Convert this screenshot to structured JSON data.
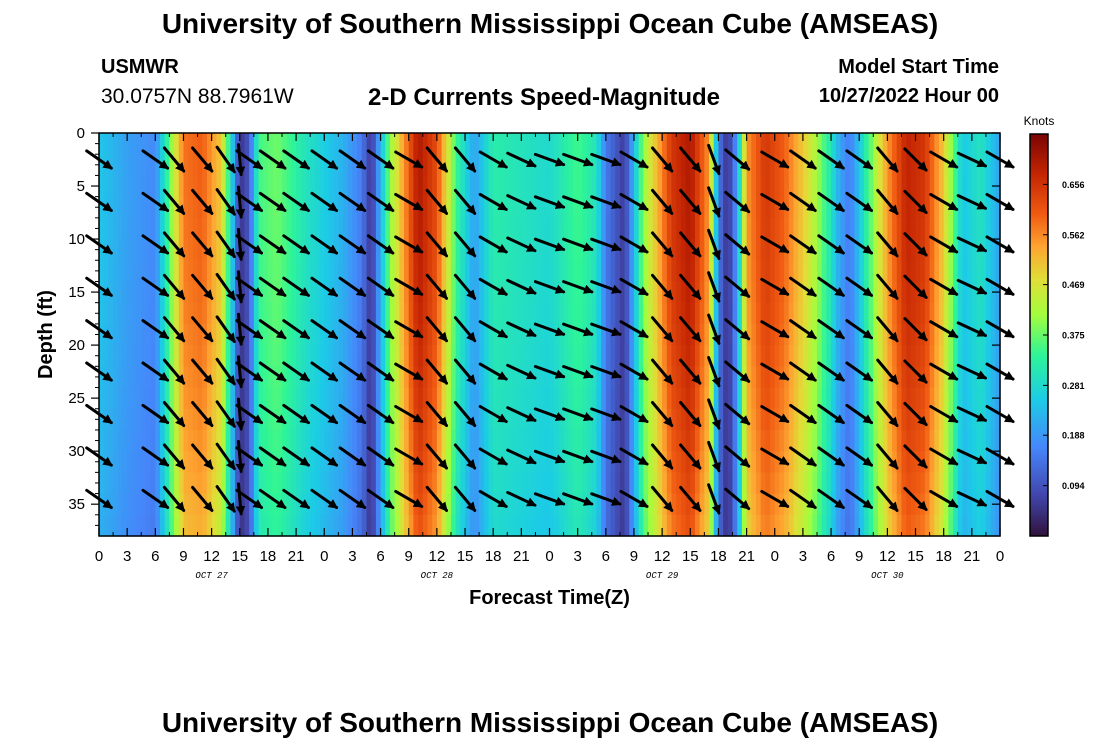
{
  "header": {
    "title": "University of Southern Mississippi Ocean Cube (AMSEAS)",
    "station": "USMWR",
    "coords": "30.0757N  88.7961W",
    "subtitle": "2-D Currents Speed-Magnitude",
    "model_start_label": "Model Start Time",
    "model_start_value": "10/27/2022 Hour 00"
  },
  "footer": {
    "title": "University of Southern Mississippi Ocean Cube (AMSEAS)"
  },
  "chart_data": {
    "type": "heatmap",
    "title": "2-D Currents Speed-Magnitude",
    "xlabel": "Forecast Time(Z)",
    "ylabel": "Depth (ft)",
    "x_range_hours": [
      0,
      96
    ],
    "ylim": [
      0,
      38
    ],
    "y_inverted": true,
    "x_ticks": [
      "0",
      "3",
      "6",
      "9",
      "12",
      "15",
      "18",
      "21",
      "0",
      "3",
      "6",
      "9",
      "12",
      "15",
      "18",
      "21",
      "0",
      "3",
      "6",
      "9",
      "12",
      "15",
      "18",
      "21",
      "0",
      "3",
      "6",
      "9",
      "12",
      "15",
      "18",
      "21",
      "0"
    ],
    "y_ticks": [
      "0",
      "5",
      "10",
      "15",
      "20",
      "25",
      "30",
      "35"
    ],
    "date_labels": [
      {
        "label": "OCT 27",
        "hour": 12
      },
      {
        "label": "OCT 28",
        "hour": 36
      },
      {
        "label": "OCT 29",
        "hour": 60
      },
      {
        "label": "OCT 30",
        "hour": 84
      }
    ],
    "colorbar": {
      "title": "Knots",
      "min": 0.0,
      "max": 0.75,
      "ticks": [
        "0.656",
        "0.562",
        "0.469",
        "0.375",
        "0.281",
        "0.188",
        "0.094"
      ],
      "tick_values": [
        0.656,
        0.562,
        0.469,
        0.375,
        0.281,
        0.188,
        0.094
      ]
    },
    "speed_series_hours": [
      0,
      3,
      6,
      7,
      9,
      11,
      13,
      14,
      15,
      16,
      17,
      19,
      22,
      26,
      28,
      29,
      31,
      34,
      36,
      38,
      40,
      42,
      45,
      48,
      51,
      53,
      54,
      56,
      58,
      61,
      63,
      65,
      66,
      67,
      68,
      69,
      71,
      73,
      76,
      78,
      79,
      80,
      82,
      84,
      86,
      88,
      90,
      92,
      94,
      96
    ],
    "speed_series_knots": [
      0.25,
      0.2,
      0.17,
      0.3,
      0.58,
      0.6,
      0.5,
      0.3,
      0.05,
      0.1,
      0.35,
      0.38,
      0.3,
      0.22,
      0.15,
      0.05,
      0.4,
      0.7,
      0.62,
      0.35,
      0.2,
      0.32,
      0.3,
      0.28,
      0.35,
      0.3,
      0.15,
      0.06,
      0.4,
      0.65,
      0.7,
      0.55,
      0.15,
      0.04,
      0.2,
      0.55,
      0.65,
      0.6,
      0.45,
      0.3,
      0.2,
      0.15,
      0.35,
      0.55,
      0.68,
      0.65,
      0.5,
      0.25,
      0.3,
      0.2
    ],
    "depth_attenuation": 0.12,
    "vector_columns_hours": [
      0,
      6,
      8,
      11,
      13.5,
      15,
      16,
      18.5,
      21,
      24,
      27,
      30,
      33,
      36,
      39,
      42,
      45,
      48,
      51,
      54,
      57,
      60,
      63,
      65.5,
      68,
      72,
      75,
      78,
      81,
      84,
      87,
      90,
      93,
      96
    ],
    "vector_rows_ft": [
      2.5,
      6.5,
      10.5,
      14.5,
      18.5,
      22.5,
      26.5,
      30.5,
      34.5
    ],
    "vector_direction_deg": [
      145,
      145,
      130,
      130,
      125,
      95,
      145,
      145,
      145,
      145,
      145,
      145,
      150,
      130,
      130,
      150,
      155,
      160,
      160,
      160,
      150,
      130,
      130,
      110,
      140,
      150,
      145,
      145,
      145,
      130,
      135,
      150,
      155,
      150
    ]
  }
}
